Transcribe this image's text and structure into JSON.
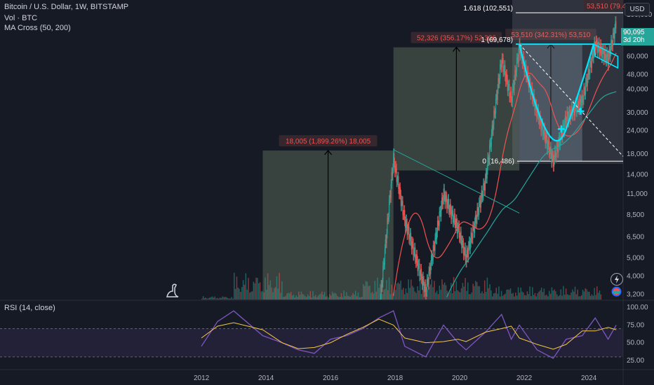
{
  "header": {
    "title": "Bitcoin / U.S. Dollar, 1W, BITSTAMP",
    "vol_label": "Vol · BTC",
    "ma_label": "MA Cross (50, 200)",
    "currency_button": "USD",
    "price_badge": "90,095",
    "countdown_badge": "3d 20h"
  },
  "rsi_panel": {
    "label": "RSI (14, close)"
  },
  "colors": {
    "background": "#161a25",
    "up": "#26a69a",
    "down": "#ef5350",
    "ma_fast": "#ef5350",
    "ma_slow": "#26a69a",
    "rsi_line": "#7e57c2",
    "rsi_ma": "#f5c842",
    "fib_line": "#ffffff",
    "cup_handle": "#00e5ff",
    "measure_box": "#5a6b5a",
    "label_red": "#ef5350"
  },
  "chart_data": [
    {
      "type": "candlestick",
      "title": "Bitcoin / U.S. Dollar, 1W, BITSTAMP",
      "y_scale": "log",
      "y_ticks": [
        "100,000",
        "80,000",
        "60,000",
        "48,000",
        "40,000",
        "30,000",
        "24,000",
        "18,000",
        "14,000",
        "11,000",
        "8,500",
        "6,500",
        "5,000",
        "4,000",
        "3,200"
      ],
      "x_ticks": [
        "2012",
        "2014",
        "2016",
        "2018",
        "2020",
        "2022",
        "2024"
      ],
      "last_price": 90095,
      "series_approx": {
        "x": [
          2012.0,
          2012.5,
          2013.0,
          2013.9,
          2014.5,
          2015.0,
          2015.5,
          2016.0,
          2016.5,
          2017.0,
          2017.5,
          2017.95,
          2018.3,
          2018.95,
          2019.5,
          2019.95,
          2020.2,
          2020.8,
          2021.3,
          2021.6,
          2021.85,
          2022.4,
          2022.9,
          2023.3,
          2023.8,
          2024.2,
          2024.6,
          2024.85
        ],
        "close": [
          5,
          6,
          13,
          1000,
          600,
          250,
          240,
          430,
          650,
          1000,
          2500,
          17000,
          8000,
          3300,
          11000,
          7200,
          5000,
          13000,
          58000,
          35000,
          67000,
          30000,
          16500,
          28000,
          35000,
          70000,
          58000,
          90095
        ]
      },
      "annotations": [
        {
          "text": "18,005 (1,899.26%) 18,005",
          "kind": "measure"
        },
        {
          "text": "52,326 (356.17%) 52,326",
          "kind": "measure"
        },
        {
          "text": "53,510 (342.31%) 53,510",
          "kind": "measure"
        },
        {
          "text": "53,510 (79.4",
          "kind": "measure"
        },
        {
          "text": "1.618 (102,551)",
          "kind": "fib",
          "value": 102551
        },
        {
          "text": "1 (69,678)",
          "kind": "fib",
          "value": 69678
        },
        {
          "text": "0 (16,486)",
          "kind": "fib",
          "value": 16486
        }
      ]
    },
    {
      "type": "line",
      "title": "RSI (14, close)",
      "ylim": [
        25,
        100
      ],
      "y_ticks": [
        "100.00",
        "75.00",
        "50.00",
        "25.00"
      ],
      "bands": [
        70,
        30
      ],
      "series": [
        {
          "values": [
            45,
            80,
            95,
            60,
            50,
            40,
            35,
            55,
            60,
            70,
            85,
            95,
            45,
            30,
            75,
            50,
            40,
            65,
            90,
            55,
            75,
            40,
            28,
            55,
            60,
            85,
            55,
            75
          ]
        }
      ]
    }
  ]
}
